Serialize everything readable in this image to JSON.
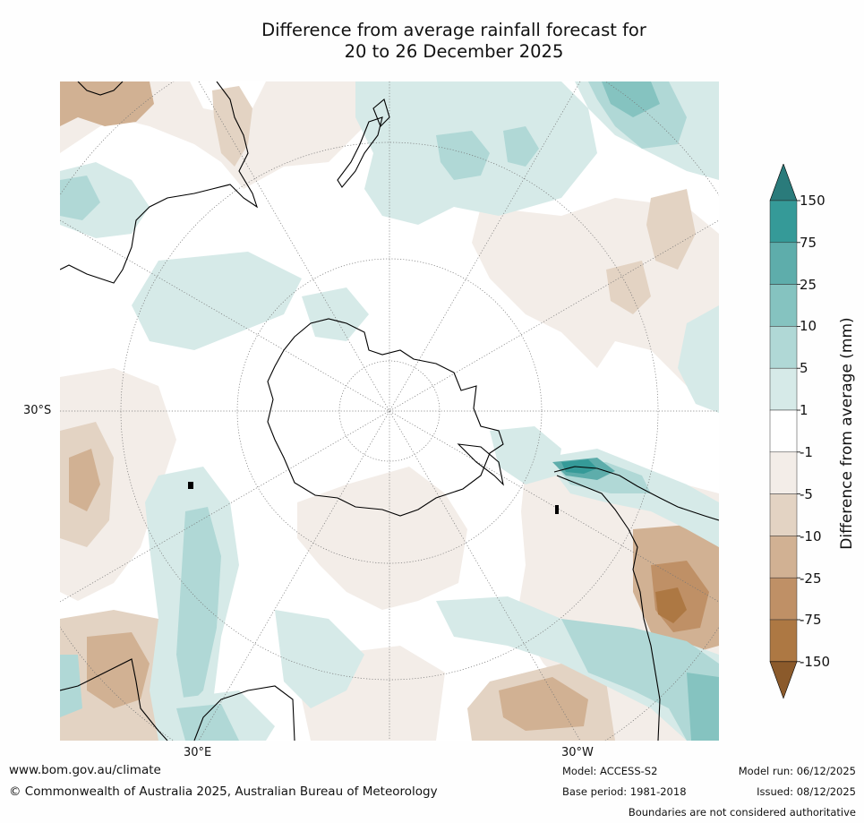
{
  "title": {
    "line1": "Difference from average rainfall forecast for",
    "line2": "20 to 26 December 2025"
  },
  "map": {
    "projection": "south polar stereographic",
    "center": "South Pole",
    "graticule_labels": {
      "lat_left": "30°S",
      "lon_bottom_left": "30°E",
      "lon_bottom_right": "30°W"
    },
    "features": [
      "Antarctica",
      "Australia",
      "New Zealand",
      "South America",
      "Southern Africa"
    ]
  },
  "colorbar": {
    "label": "Difference from average (mm)",
    "tick_labels": [
      "150",
      "75",
      "25",
      "10",
      "5",
      "1",
      "-1",
      "-5",
      "-10",
      "-25",
      "-75",
      "-150"
    ],
    "bins": [
      {
        "range": "> 150",
        "color": "#2a7b7b"
      },
      {
        "range": "75 to 150",
        "color": "#359a98"
      },
      {
        "range": "25 to 75",
        "color": "#5eadab"
      },
      {
        "range": "10 to 25",
        "color": "#85c3c0"
      },
      {
        "range": "5 to 10",
        "color": "#b0d8d6"
      },
      {
        "range": "1 to 5",
        "color": "#d6eae8"
      },
      {
        "range": "-1 to 1",
        "color": "#ffffff"
      },
      {
        "range": "-5 to -1",
        "color": "#f3ede8"
      },
      {
        "range": "-10 to -5",
        "color": "#e3d3c3"
      },
      {
        "range": "-25 to -10",
        "color": "#d1b193"
      },
      {
        "range": "-75 to -25",
        "color": "#bf9066"
      },
      {
        "range": "-150 to -75",
        "color": "#ad7843"
      },
      {
        "range": "< -150",
        "color": "#8b5a2b"
      }
    ]
  },
  "footer": {
    "website": "www.bom.gov.au/climate",
    "copyright": "© Commonwealth of Australia 2025, Australian Bureau of Meteorology",
    "model": "Model: ACCESS-S2",
    "base_period": "Base period: 1981-2018",
    "model_run": "Model run: 06/12/2025",
    "issued": "Issued: 08/12/2025",
    "disclaimer": "Boundaries are not considered authoritative"
  }
}
